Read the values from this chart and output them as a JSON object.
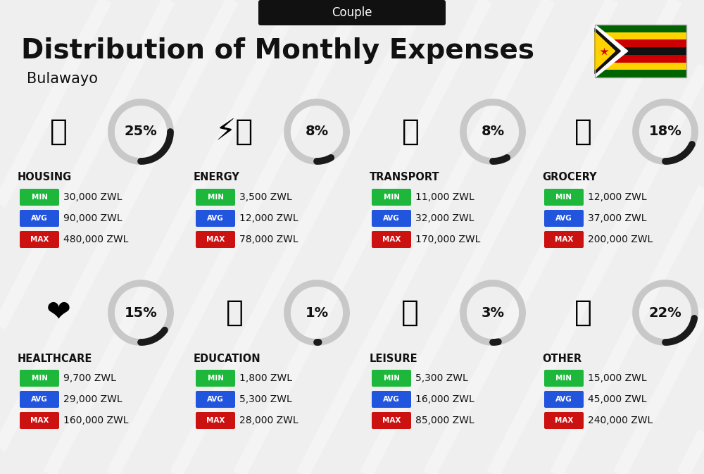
{
  "title": "Distribution of Monthly Expenses",
  "subtitle": "Bulawayo",
  "header_label": "Couple",
  "bg_color": "#efefef",
  "categories": [
    {
      "name": "HOUSING",
      "pct": 25,
      "min_val": "30,000 ZWL",
      "avg_val": "90,000 ZWL",
      "max_val": "480,000 ZWL"
    },
    {
      "name": "ENERGY",
      "pct": 8,
      "min_val": "3,500 ZWL",
      "avg_val": "12,000 ZWL",
      "max_val": "78,000 ZWL"
    },
    {
      "name": "TRANSPORT",
      "pct": 8,
      "min_val": "11,000 ZWL",
      "avg_val": "32,000 ZWL",
      "max_val": "170,000 ZWL"
    },
    {
      "name": "GROCERY",
      "pct": 18,
      "min_val": "12,000 ZWL",
      "avg_val": "37,000 ZWL",
      "max_val": "200,000 ZWL"
    },
    {
      "name": "HEALTHCARE",
      "pct": 15,
      "min_val": "9,700 ZWL",
      "avg_val": "29,000 ZWL",
      "max_val": "160,000 ZWL"
    },
    {
      "name": "EDUCATION",
      "pct": 1,
      "min_val": "1,800 ZWL",
      "avg_val": "5,300 ZWL",
      "max_val": "28,000 ZWL"
    },
    {
      "name": "LEISURE",
      "pct": 3,
      "min_val": "5,300 ZWL",
      "avg_val": "16,000 ZWL",
      "max_val": "85,000 ZWL"
    },
    {
      "name": "OTHER",
      "pct": 22,
      "min_val": "15,000 ZWL",
      "avg_val": "45,000 ZWL",
      "max_val": "240,000 ZWL"
    }
  ],
  "min_color": "#1db83b",
  "avg_color": "#2255dd",
  "max_color": "#cc1111",
  "text_color": "#111111",
  "ring_color_active": "#1a1a1a",
  "ring_color_bg": "#c8c8c8",
  "flag_stripes": [
    "#006400",
    "#FFD200",
    "#cc0000",
    "#111111",
    "#cc0000",
    "#FFD200",
    "#006400"
  ],
  "diag_line_color": "#ffffff",
  "diag_line_alpha": 0.35,
  "diag_line_lw": 14
}
